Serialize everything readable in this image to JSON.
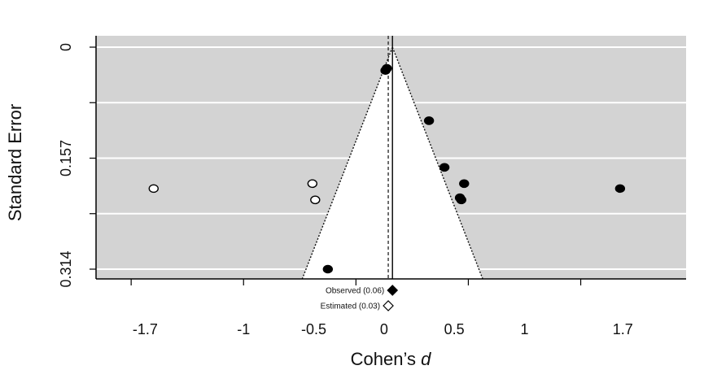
{
  "chart_data": {
    "type": "scatter",
    "subtype": "funnel-plot",
    "xlabel": "Cohen’s ",
    "xlabel_italic": "d",
    "ylabel": "Standard Error",
    "xlim": [
      -2.05,
      2.15
    ],
    "ylim": [
      0.314,
      0
    ],
    "y_reversed": true,
    "x_ticks": [
      {
        "value": -1.7,
        "label": "-1.7"
      },
      {
        "value": -1,
        "label": "-1"
      },
      {
        "value": -0.5,
        "label": "-0.5"
      },
      {
        "value": 0,
        "label": "0"
      },
      {
        "value": 0.5,
        "label": "0.5"
      },
      {
        "value": 1,
        "label": "1"
      },
      {
        "value": 1.7,
        "label": "1.7"
      }
    ],
    "x_tick_marks": [
      -1.8,
      -1,
      -0.2,
      0.6,
      1.4,
      2.2
    ],
    "y_ticks": [
      {
        "value": 0,
        "label": "0"
      },
      {
        "value": 0.157,
        "label": "0.157"
      },
      {
        "value": 0.314,
        "label": "0.314"
      }
    ],
    "y_gridlines": [
      0,
      0.0785,
      0.157,
      0.2355,
      0.314
    ],
    "grid": true,
    "background_color": "#d3d3d3",
    "funnel": {
      "center": 0.06,
      "se_max": 0.314,
      "z": 1.96
    },
    "observed_line_x": 0.06,
    "estimated_line_x": 0.03,
    "series": [
      {
        "name": "Observed",
        "filled": true,
        "points": [
          {
            "x": 0.02,
            "y": 0.03
          },
          {
            "x": 0.01,
            "y": 0.033
          },
          {
            "x": 0.32,
            "y": 0.104
          },
          {
            "x": 0.43,
            "y": 0.17
          },
          {
            "x": 0.57,
            "y": 0.193
          },
          {
            "x": 0.54,
            "y": 0.213
          },
          {
            "x": 0.55,
            "y": 0.216
          },
          {
            "x": 1.68,
            "y": 0.2
          },
          {
            "x": -0.4,
            "y": 0.314
          }
        ]
      },
      {
        "name": "Estimated",
        "filled": false,
        "points": [
          {
            "x": -1.64,
            "y": 0.2
          },
          {
            "x": -0.51,
            "y": 0.193
          },
          {
            "x": -0.49,
            "y": 0.216
          }
        ]
      }
    ],
    "summary_markers": [
      {
        "label": "Observed (0.06)",
        "x": 0.06,
        "filled": true
      },
      {
        "label": "Estimated (0.03)",
        "x": 0.03,
        "filled": false
      }
    ]
  }
}
